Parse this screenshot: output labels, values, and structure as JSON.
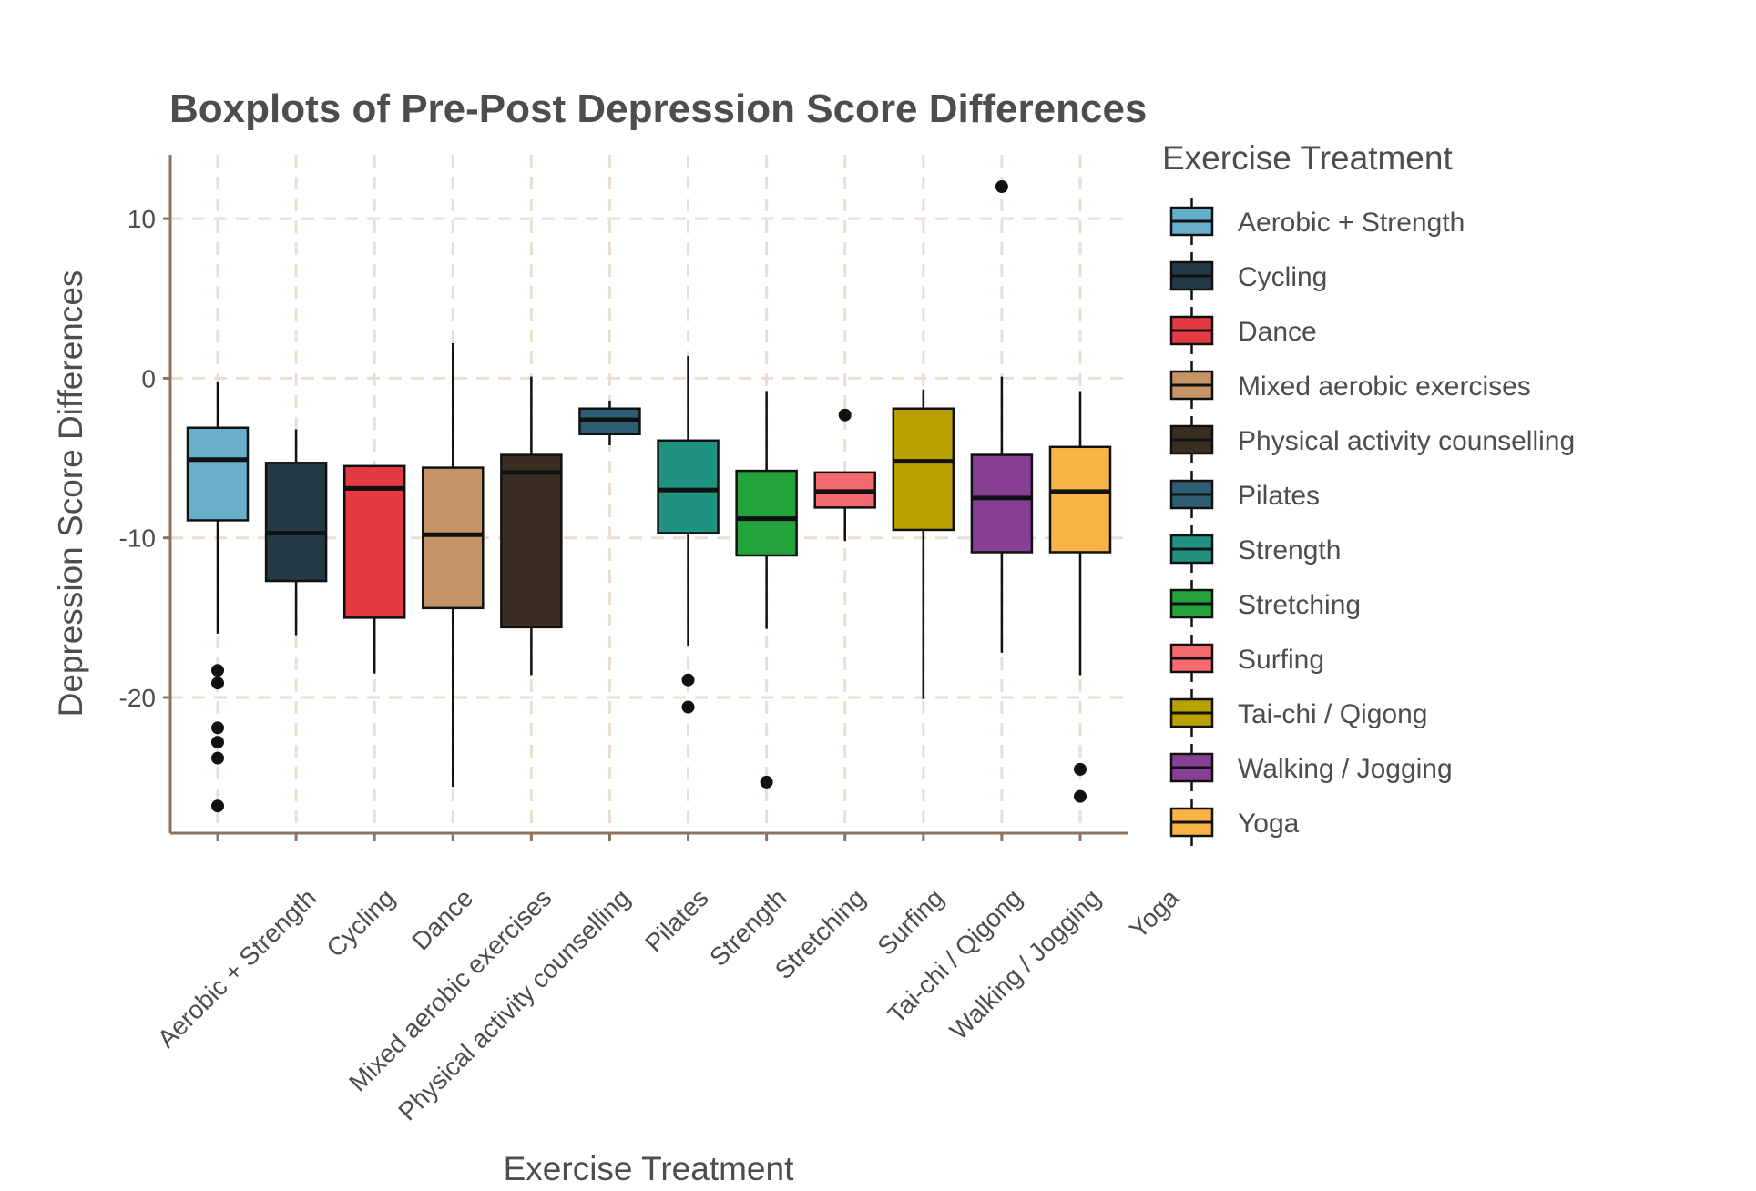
{
  "chart_data": {
    "type": "boxplot",
    "title": "Boxplots of Pre-Post Depression Score Differences",
    "xlabel": "Exercise Treatment",
    "ylabel": "Depression Score Differences",
    "ylim": [
      -28.5,
      14
    ],
    "yticks": [
      10,
      0,
      -10,
      -20
    ],
    "ytick_labels": [
      "10",
      "0",
      "-10",
      "-20"
    ],
    "grid": true,
    "legend": {
      "title": "Exercise Treatment",
      "position": "right"
    },
    "categories": [
      "Aerobic + Strength",
      "Cycling",
      "Dance",
      "Mixed aerobic exercises",
      "Physical activity counselling",
      "Pilates",
      "Strength",
      "Stretching",
      "Surfing",
      "Tai-chi / Qigong",
      "Walking / Jogging",
      "Yoga"
    ],
    "colors": [
      "#67aecb",
      "#233a44",
      "#e33a43",
      "#c49467",
      "#3a2d22",
      "#2e5e73",
      "#1f9280",
      "#23a33b",
      "#f36b6e",
      "#b9a101",
      "#873f95",
      "#f9b446"
    ],
    "boxes": [
      {
        "whisker_low": -16,
        "q1": -8.9,
        "median": -5.1,
        "q3": -3.1,
        "whisker_high": -0.2,
        "outliers": [
          -18.3,
          -19.1,
          -21.9,
          -22.8,
          -23.8,
          -26.8
        ]
      },
      {
        "whisker_low": -16.1,
        "q1": -12.7,
        "median": -9.7,
        "q3": -5.3,
        "whisker_high": -3.2,
        "outliers": []
      },
      {
        "whisker_low": -18.5,
        "q1": -15,
        "median": -6.9,
        "q3": -5.5,
        "whisker_high": -5.5,
        "outliers": []
      },
      {
        "whisker_low": -25.6,
        "q1": -14.4,
        "median": -9.8,
        "q3": -5.6,
        "whisker_high": 2.2,
        "outliers": []
      },
      {
        "whisker_low": -18.6,
        "q1": -15.6,
        "median": -5.9,
        "q3": -4.8,
        "whisker_high": 0.1,
        "outliers": []
      },
      {
        "whisker_low": -4.2,
        "q1": -3.5,
        "median": -2.6,
        "q3": -1.9,
        "whisker_high": -1.4,
        "outliers": []
      },
      {
        "whisker_low": -16.8,
        "q1": -9.7,
        "median": -7,
        "q3": -3.9,
        "whisker_high": 1.4,
        "outliers": [
          -18.9,
          -20.6
        ]
      },
      {
        "whisker_low": -15.7,
        "q1": -11.1,
        "median": -8.8,
        "q3": -5.8,
        "whisker_high": -0.8,
        "outliers": [
          -25.3
        ]
      },
      {
        "whisker_low": -10.2,
        "q1": -8.1,
        "median": -7.1,
        "q3": -5.9,
        "whisker_high": -5.9,
        "outliers": [
          -2.3
        ]
      },
      {
        "whisker_low": -20.1,
        "q1": -9.5,
        "median": -5.2,
        "q3": -1.9,
        "whisker_high": -0.7,
        "outliers": []
      },
      {
        "whisker_low": -17.2,
        "q1": -10.9,
        "median": -7.5,
        "q3": -4.8,
        "whisker_high": 0.1,
        "outliers": [
          12
        ]
      },
      {
        "whisker_low": -18.6,
        "q1": -10.9,
        "median": -7.1,
        "q3": -4.3,
        "whisker_high": -0.8,
        "outliers": [
          -24.5,
          -26.2
        ]
      }
    ]
  }
}
